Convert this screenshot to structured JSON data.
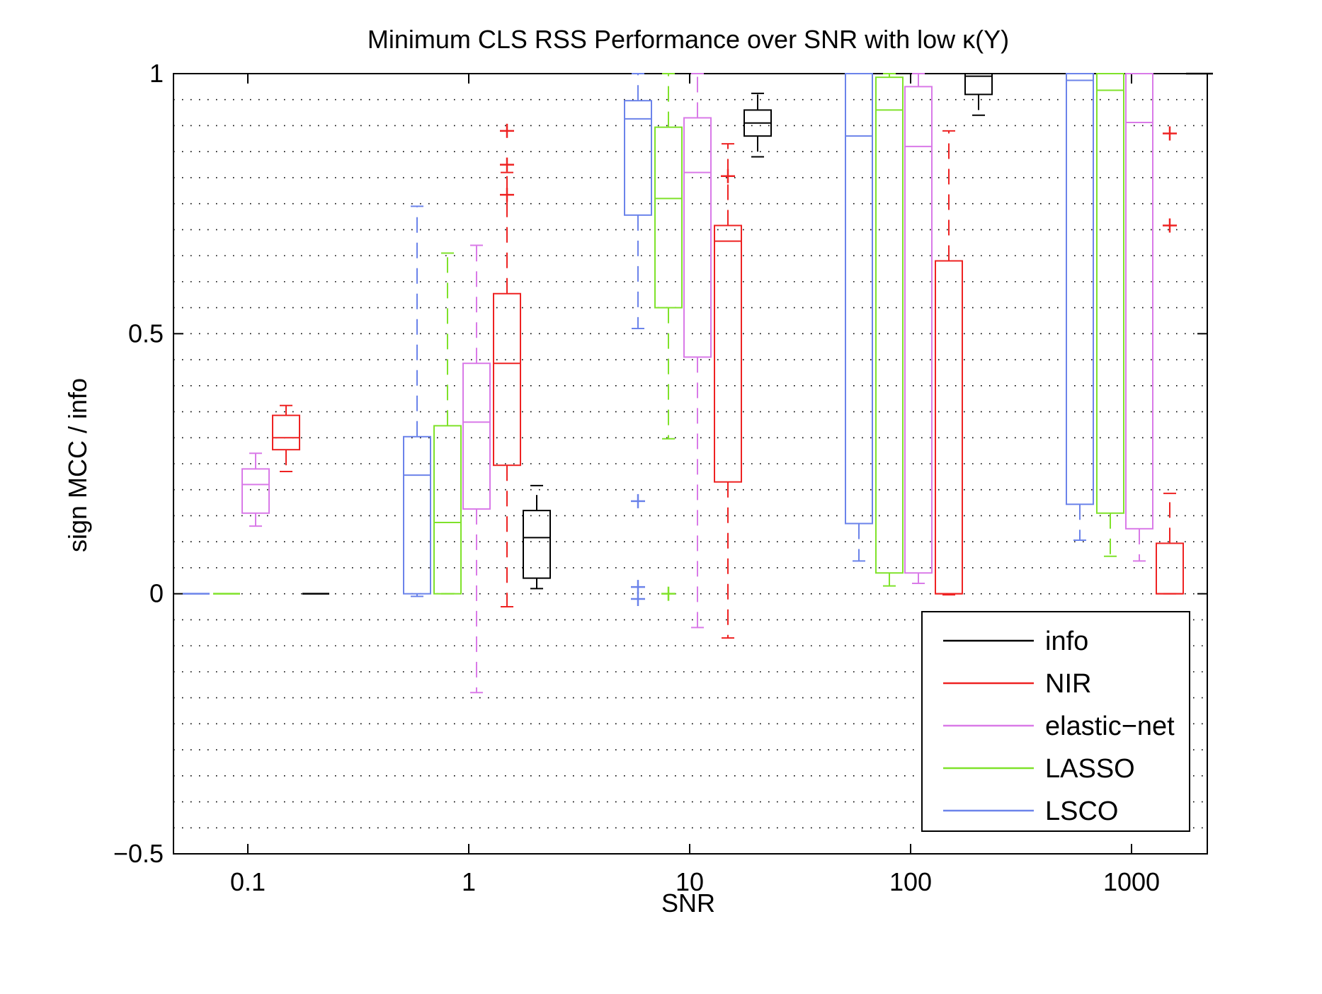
{
  "chart_data": {
    "type": "box",
    "title": "Minimum CLS RSS Performance over SNR with low κ(Y)",
    "xlabel": "SNR",
    "ylabel": "sign MCC / info",
    "x_scale": "log",
    "categories": [
      "0.1",
      "1",
      "10",
      "100",
      "1000"
    ],
    "y_ticks": [
      "−0.5",
      "0",
      "0.5",
      "1"
    ],
    "ylim": [
      -0.5,
      1.0
    ],
    "grid": true,
    "legend_position": "bottom-right",
    "series": [
      {
        "name": "LSCO",
        "color": "#6b83ea",
        "boxes": [
          {
            "snr": "0.1",
            "whisker_low": 0,
            "q1": 0,
            "median": 0,
            "q3": 0,
            "whisker_high": 0,
            "outliers": []
          },
          {
            "snr": "1",
            "whisker_low": -0.005,
            "q1": 0,
            "median": 0.228,
            "q3": 0.302,
            "whisker_high": 0.745,
            "outliers": []
          },
          {
            "snr": "10",
            "whisker_low": 0.51,
            "q1": 0.728,
            "median": 0.913,
            "q3": 0.948,
            "whisker_high": 1.0,
            "outliers": [
              0.178,
              0.013,
              -0.01
            ]
          },
          {
            "snr": "100",
            "whisker_low": 0.063,
            "q1": 0.135,
            "median": 0.88,
            "q3": 1.0,
            "whisker_high": 1.0,
            "outliers": []
          },
          {
            "snr": "1000",
            "whisker_low": 0.103,
            "q1": 0.172,
            "median": 0.987,
            "q3": 1.0,
            "whisker_high": 1.0,
            "outliers": []
          }
        ]
      },
      {
        "name": "LASSO",
        "color": "#7fe22a",
        "boxes": [
          {
            "snr": "0.1",
            "whisker_low": 0,
            "q1": 0,
            "median": 0,
            "q3": 0,
            "whisker_high": 0,
            "outliers": []
          },
          {
            "snr": "1",
            "whisker_low": 0,
            "q1": 0,
            "median": 0.137,
            "q3": 0.323,
            "whisker_high": 0.655,
            "outliers": []
          },
          {
            "snr": "10",
            "whisker_low": 0.298,
            "q1": 0.55,
            "median": 0.76,
            "q3": 0.897,
            "whisker_high": 1.0,
            "outliers": [
              0.0
            ]
          },
          {
            "snr": "100",
            "whisker_low": 0.015,
            "q1": 0.04,
            "median": 0.93,
            "q3": 0.993,
            "whisker_high": 1.0,
            "outliers": []
          },
          {
            "snr": "1000",
            "whisker_low": 0.072,
            "q1": 0.155,
            "median": 0.968,
            "q3": 1.0,
            "whisker_high": 1.0,
            "outliers": []
          }
        ]
      },
      {
        "name": "elastic−net",
        "color": "#d97ae8",
        "boxes": [
          {
            "snr": "0.1",
            "whisker_low": 0.13,
            "q1": 0.155,
            "median": 0.21,
            "q3": 0.24,
            "whisker_high": 0.27,
            "outliers": []
          },
          {
            "snr": "1",
            "whisker_low": -0.19,
            "q1": 0.163,
            "median": 0.33,
            "q3": 0.443,
            "whisker_high": 0.67,
            "outliers": []
          },
          {
            "snr": "10",
            "whisker_low": -0.065,
            "q1": 0.455,
            "median": 0.81,
            "q3": 0.915,
            "whisker_high": 1.0,
            "outliers": []
          },
          {
            "snr": "100",
            "whisker_low": 0.02,
            "q1": 0.04,
            "median": 0.86,
            "q3": 0.975,
            "whisker_high": 1.0,
            "outliers": []
          },
          {
            "snr": "1000",
            "whisker_low": 0.063,
            "q1": 0.125,
            "median": 0.906,
            "q3": 1.0,
            "whisker_high": 1.0,
            "outliers": []
          }
        ]
      },
      {
        "name": "NIR",
        "color": "#ee2222",
        "boxes": [
          {
            "snr": "0.1",
            "whisker_low": 0.235,
            "q1": 0.277,
            "median": 0.3,
            "q3": 0.343,
            "whisker_high": 0.362,
            "outliers": []
          },
          {
            "snr": "1",
            "whisker_low": -0.025,
            "q1": 0.247,
            "median": 0.443,
            "q3": 0.577,
            "whisker_high": 0.81,
            "outliers": [
              0.89,
              0.825,
              0.767
            ]
          },
          {
            "snr": "10",
            "whisker_low": -0.085,
            "q1": 0.215,
            "median": 0.678,
            "q3": 0.708,
            "whisker_high": 0.865,
            "outliers": [
              0.803
            ]
          },
          {
            "snr": "100",
            "whisker_low": -0.002,
            "q1": 0,
            "median": 0,
            "q3": 0.64,
            "whisker_high": 0.89,
            "outliers": []
          },
          {
            "snr": "1000",
            "whisker_low": 0,
            "q1": 0,
            "median": 0,
            "q3": 0.097,
            "whisker_high": 0.193,
            "outliers": [
              0.885,
              0.708
            ]
          }
        ]
      },
      {
        "name": "info",
        "color": "#000000",
        "boxes": [
          {
            "snr": "0.1",
            "whisker_low": 0,
            "q1": 0,
            "median": 0,
            "q3": 0,
            "whisker_high": 0,
            "outliers": []
          },
          {
            "snr": "1",
            "whisker_low": 0.01,
            "q1": 0.03,
            "median": 0.108,
            "q3": 0.16,
            "whisker_high": 0.208,
            "outliers": []
          },
          {
            "snr": "10",
            "whisker_low": 0.84,
            "q1": 0.88,
            "median": 0.905,
            "q3": 0.93,
            "whisker_high": 0.962,
            "outliers": []
          },
          {
            "snr": "100",
            "whisker_low": 0.92,
            "q1": 0.96,
            "median": 0.995,
            "q3": 1.0,
            "whisker_high": 1.0,
            "outliers": []
          },
          {
            "snr": "1000",
            "whisker_low": 1.0,
            "q1": 1.0,
            "median": 1.0,
            "q3": 1.0,
            "whisker_high": 1.0,
            "outliers": []
          }
        ]
      }
    ],
    "legend": [
      "info",
      "NIR",
      "elastic−net",
      "LASSO",
      "LSCO"
    ]
  }
}
